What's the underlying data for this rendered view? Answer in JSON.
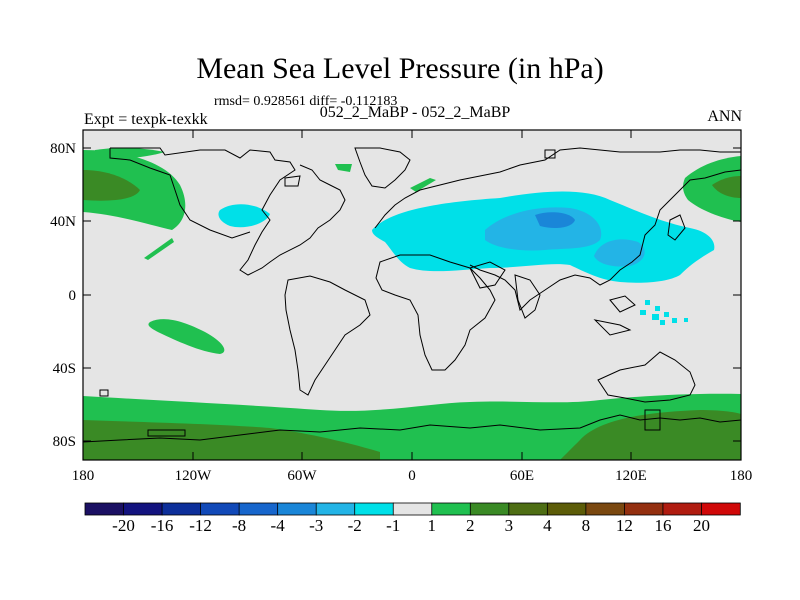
{
  "title": "Mean Sea Level Pressure (in hPa)",
  "stats": "rmsd= 0.928561 diff= -0.112183",
  "left_label": "Expt = texpk-texkk",
  "center_label": "052_2_MaBP - 052_2_MaBP",
  "right_label": "ANN",
  "axes": {
    "y_ticks": [
      "80N",
      "40N",
      "0",
      "40S",
      "80S"
    ],
    "x_ticks": [
      "180",
      "120W",
      "60W",
      "0",
      "60E",
      "120E",
      "180"
    ]
  },
  "colorbar": {
    "colors": [
      "#1b1063",
      "#13137f",
      "#0d2f9a",
      "#1149b8",
      "#1766cc",
      "#1a86d8",
      "#23b4e6",
      "#00e0e8",
      "#e5e5e5",
      "#20c050",
      "#3a8a25",
      "#4e6e14",
      "#5c5c08",
      "#7a4810",
      "#943010",
      "#b01c10",
      "#d00808"
    ],
    "labels": [
      "-20",
      "-16",
      "-12",
      "-8",
      "-4",
      "-3",
      "-2",
      "-1",
      "1",
      "2",
      "3",
      "4",
      "8",
      "12",
      "16",
      "20"
    ]
  }
}
